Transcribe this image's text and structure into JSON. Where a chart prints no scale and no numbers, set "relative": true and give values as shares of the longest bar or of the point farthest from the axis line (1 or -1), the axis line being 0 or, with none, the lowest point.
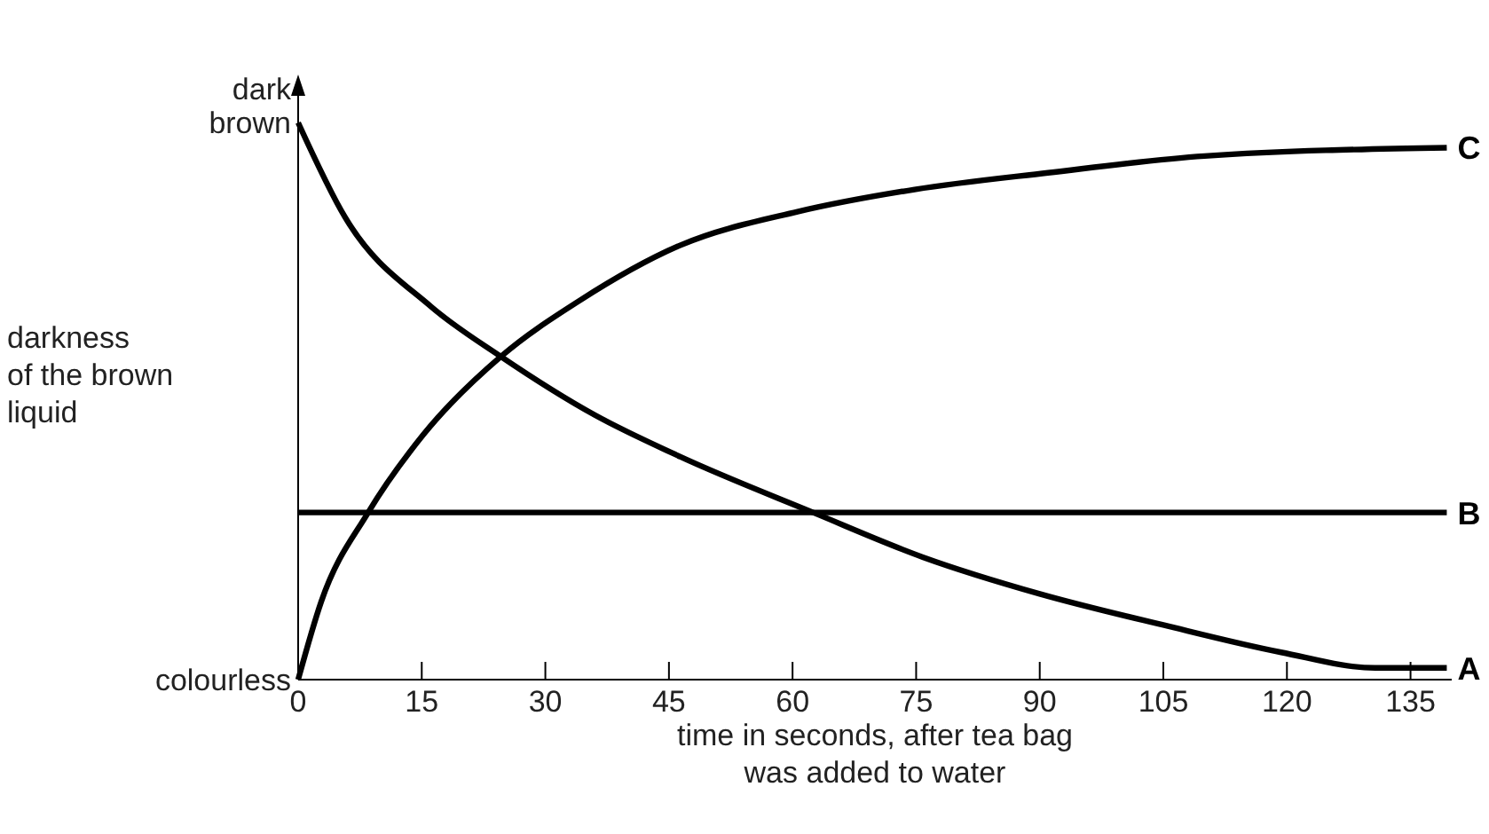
{
  "chart_data": {
    "type": "line",
    "xlabel": "time in seconds, after tea bag\nwas added to water",
    "ylabel": "darkness\nof the brown\nliquid",
    "xlim": [
      0,
      140
    ],
    "xticks": [
      0,
      15,
      30,
      45,
      60,
      75,
      90,
      105,
      120,
      135
    ],
    "relative": true,
    "annotations": [
      "dark\nbrown",
      "colourless"
    ],
    "marker": "none",
    "line_style": "solid",
    "series": [
      {
        "name": "A",
        "color": "#000000",
        "x": [
          0,
          5.7,
          16.1,
          24.6,
          36,
          46.4,
          62.5,
          75.8,
          90,
          105,
          119.3,
          130.7,
          139.4
        ],
        "values": [
          1.0,
          0.83,
          0.67,
          0.58,
          0.475,
          0.4,
          0.3,
          0.22,
          0.154,
          0.098,
          0.049,
          0.021,
          0.021
        ]
      },
      {
        "name": "B",
        "color": "#000000",
        "x": [
          0,
          139.4
        ],
        "values": [
          0.3,
          0.3
        ]
      },
      {
        "name": "C",
        "color": "#000000",
        "x": [
          0,
          2.8,
          8.5,
          15.2,
          24.6,
          34.1,
          46.4,
          60.6,
          74.8,
          91,
          110,
          139.4
        ],
        "values": [
          0,
          0.14,
          0.3,
          0.44,
          0.58,
          0.68,
          0.78,
          0.84,
          0.88,
          0.91,
          0.94,
          0.955
        ]
      }
    ]
  }
}
